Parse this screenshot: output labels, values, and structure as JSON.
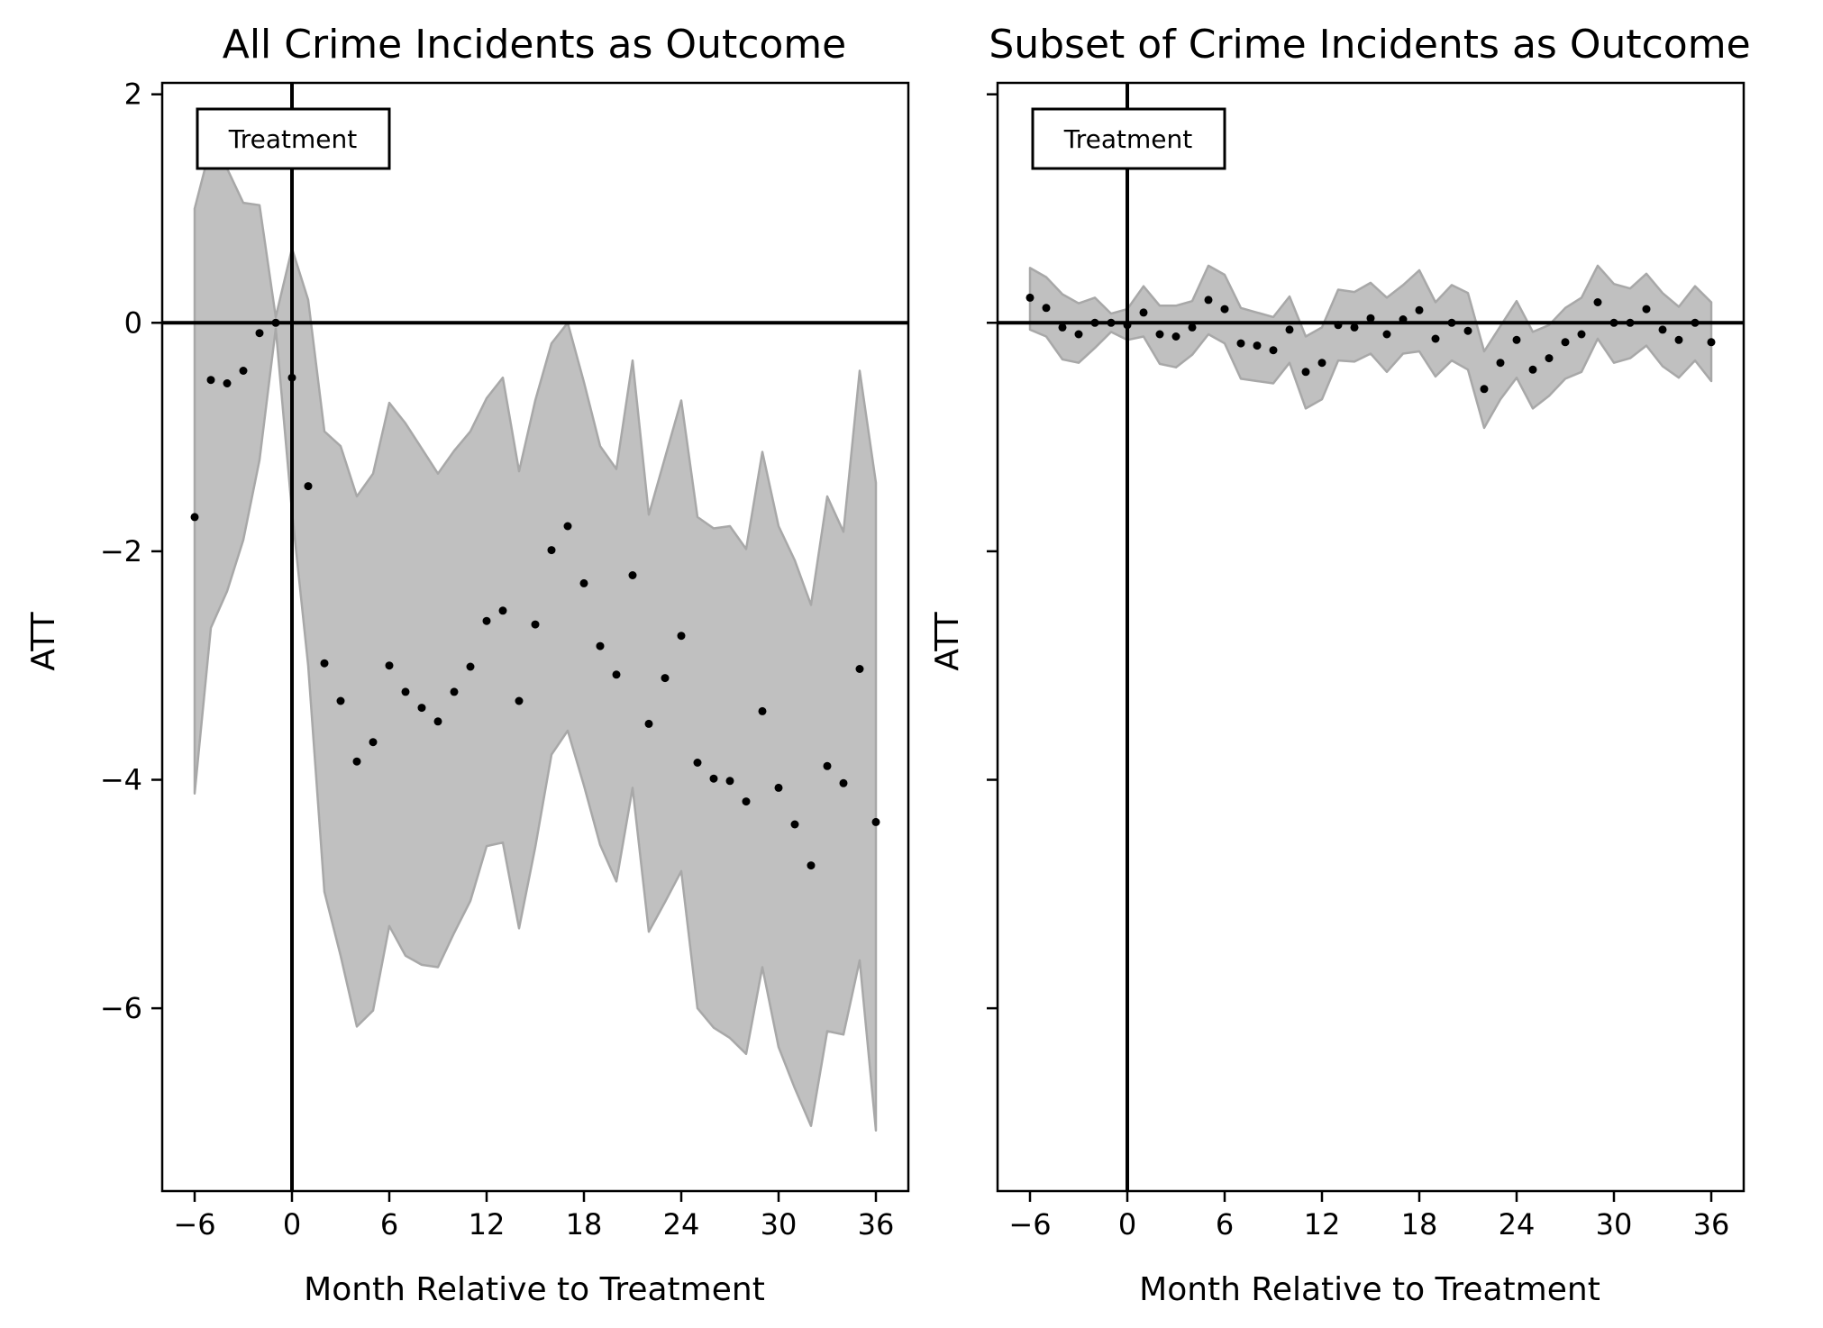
{
  "chart_data": [
    {
      "type": "scatter",
      "title": "All Crime Incidents as Outcome",
      "xlabel": "Month Relative to Treatment",
      "ylabel": "ATT",
      "annotation": "Treatment",
      "xlim": [
        -8,
        38
      ],
      "ylim": [
        -7.6,
        2.1
      ],
      "xticks": [
        -6,
        0,
        6,
        12,
        18,
        24,
        30,
        36
      ],
      "yticks": [
        2,
        0,
        -2,
        -4,
        -6
      ],
      "reference_lines": {
        "x": 0,
        "y": 0
      },
      "x": [
        -6,
        -5,
        -4,
        -3,
        -2,
        -1,
        0,
        1,
        2,
        3,
        4,
        5,
        6,
        7,
        8,
        9,
        10,
        11,
        12,
        13,
        14,
        15,
        16,
        17,
        18,
        19,
        20,
        21,
        22,
        23,
        24,
        25,
        26,
        27,
        28,
        29,
        30,
        31,
        32,
        33,
        34,
        35,
        36
      ],
      "y": [
        -1.7,
        -0.5,
        -0.53,
        -0.42,
        -0.09,
        0.0,
        -0.48,
        -1.43,
        -2.98,
        -3.31,
        -3.84,
        -3.67,
        -3.0,
        -3.23,
        -3.37,
        -3.49,
        -3.23,
        -3.01,
        -2.61,
        -2.52,
        -3.31,
        -2.64,
        -1.99,
        -1.78,
        -2.28,
        -2.83,
        -3.08,
        -2.21,
        -3.51,
        -3.11,
        -2.74,
        -3.85,
        -3.99,
        -4.01,
        -4.19,
        -3.4,
        -4.07,
        -4.39,
        -4.75,
        -3.88,
        -4.03,
        -3.03,
        -4.37
      ],
      "ci_upper": [
        1.0,
        1.55,
        1.35,
        1.05,
        1.03,
        0.05,
        0.65,
        0.2,
        -0.95,
        -1.08,
        -1.52,
        -1.32,
        -0.7,
        -0.88,
        -1.1,
        -1.32,
        -1.12,
        -0.95,
        -0.66,
        -0.48,
        -1.3,
        -0.68,
        -0.18,
        0.0,
        -0.52,
        -1.08,
        -1.28,
        -0.33,
        -1.68,
        -1.18,
        -0.68,
        -1.7,
        -1.8,
        -1.78,
        -1.98,
        -1.13,
        -1.78,
        -2.08,
        -2.47,
        -1.52,
        -1.83,
        -0.42,
        -1.4
      ],
      "ci_lower": [
        -4.12,
        -2.67,
        -2.35,
        -1.9,
        -1.2,
        -0.05,
        -1.65,
        -3.0,
        -4.98,
        -5.54,
        -6.16,
        -6.02,
        -5.28,
        -5.54,
        -5.62,
        -5.64,
        -5.34,
        -5.06,
        -4.58,
        -4.55,
        -5.3,
        -4.59,
        -3.78,
        -3.57,
        -4.05,
        -4.57,
        -4.89,
        -4.07,
        -5.33,
        -5.07,
        -4.8,
        -6.0,
        -6.17,
        -6.26,
        -6.4,
        -5.64,
        -6.34,
        -6.7,
        -7.03,
        -6.2,
        -6.23,
        -5.58,
        -7.07
      ]
    },
    {
      "type": "scatter",
      "title": "Subset of Crime Incidents as Outcome",
      "xlabel": "Month Relative to Treatment",
      "ylabel": "ATT",
      "annotation": "Treatment",
      "xlim": [
        -8,
        38
      ],
      "ylim": [
        -7.6,
        2.1
      ],
      "xticks": [
        -6,
        0,
        6,
        12,
        18,
        24,
        30,
        36
      ],
      "yticks": [
        2,
        0,
        -2,
        -4,
        -6
      ],
      "reference_lines": {
        "x": 0,
        "y": 0
      },
      "x": [
        -6,
        -5,
        -4,
        -3,
        -2,
        -1,
        0,
        1,
        2,
        3,
        4,
        5,
        6,
        7,
        8,
        9,
        10,
        11,
        12,
        13,
        14,
        15,
        16,
        17,
        18,
        19,
        20,
        21,
        22,
        23,
        24,
        25,
        26,
        27,
        28,
        29,
        30,
        31,
        32,
        33,
        34,
        35,
        36
      ],
      "y": [
        0.22,
        0.13,
        -0.04,
        -0.1,
        0.0,
        0.0,
        -0.02,
        0.09,
        -0.1,
        -0.12,
        -0.04,
        0.2,
        0.12,
        -0.18,
        -0.2,
        -0.24,
        -0.06,
        -0.43,
        -0.35,
        -0.02,
        -0.04,
        0.04,
        -0.1,
        0.03,
        0.11,
        -0.14,
        0.0,
        -0.07,
        -0.58,
        -0.35,
        -0.15,
        -0.41,
        -0.31,
        -0.17,
        -0.1,
        0.18,
        0.0,
        0.0,
        0.12,
        -0.06,
        -0.15,
        0.0,
        -0.17
      ],
      "ci_upper": [
        0.48,
        0.4,
        0.25,
        0.17,
        0.22,
        0.08,
        0.12,
        0.32,
        0.15,
        0.15,
        0.19,
        0.5,
        0.42,
        0.13,
        0.09,
        0.05,
        0.23,
        -0.12,
        -0.04,
        0.29,
        0.27,
        0.35,
        0.22,
        0.33,
        0.46,
        0.18,
        0.33,
        0.26,
        -0.25,
        -0.03,
        0.19,
        -0.08,
        -0.02,
        0.13,
        0.22,
        0.5,
        0.34,
        0.3,
        0.43,
        0.26,
        0.14,
        0.32,
        0.18
      ],
      "ci_lower": [
        -0.06,
        -0.12,
        -0.32,
        -0.35,
        -0.22,
        -0.08,
        -0.15,
        -0.12,
        -0.36,
        -0.39,
        -0.28,
        -0.1,
        -0.18,
        -0.49,
        -0.51,
        -0.53,
        -0.35,
        -0.75,
        -0.67,
        -0.33,
        -0.34,
        -0.27,
        -0.43,
        -0.27,
        -0.25,
        -0.47,
        -0.33,
        -0.41,
        -0.92,
        -0.67,
        -0.48,
        -0.75,
        -0.64,
        -0.49,
        -0.43,
        -0.14,
        -0.35,
        -0.31,
        -0.2,
        -0.38,
        -0.48,
        -0.33,
        -0.51
      ]
    }
  ]
}
